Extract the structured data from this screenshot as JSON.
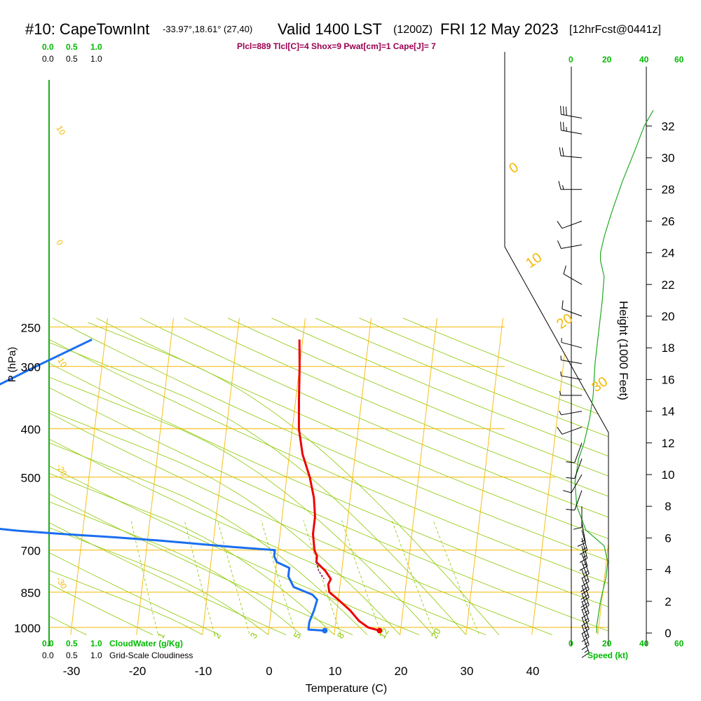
{
  "header": {
    "station": "#10: CapeTownInt",
    "coords": "-33.97°,18.61° (27,40)",
    "valid": "Valid 1400 LST",
    "zulu": "(1200Z)",
    "date": "FRI 12 May 2023",
    "forecast": "[12hrFcst@0441z]",
    "params": "Plcl=889 Tlcl[C]=4 Shox=9 Pwat[cm]=1 Cape[J]= 7"
  },
  "scales": {
    "cloudwater_top": [
      "0.0",
      "0.5",
      "1.0"
    ],
    "cloudiness_top": [
      "0.0",
      "0.5",
      "1.0"
    ],
    "cloudwater_bottom": [
      "0.0",
      "0.5",
      "1.0"
    ],
    "cloudwater_label": "CloudWater (g/Kg)",
    "cloudiness_bottom": [
      "0.0",
      "0.5",
      "1.0"
    ],
    "cloudiness_label": "Grid-Scale Cloudiness",
    "speed_top": [
      "0",
      "20",
      "40",
      "60"
    ],
    "speed_bottom": [
      "0",
      "20",
      "40",
      "60"
    ],
    "speed_label": "Speed (kt)"
  },
  "colors": {
    "isobar": "#f5b800",
    "isotherm": "#f5b800",
    "dry_adiabat": "#8cc800",
    "moist_adiabat": "#8cc800",
    "mixing_ratio": "#8cc800",
    "temperature": "#ee0000",
    "dewpoint": "#1a6ef0",
    "cloudwater": "#00aa00",
    "speed": "#22aa22",
    "params": "#9a0050"
  },
  "chart_data": {
    "type": "line",
    "title": "#10: CapeTownInt  Valid 1400 LST (1200Z) FRI 12 May 2023 [12hrFcst@0441z]",
    "xlabel": "Temperature (C)",
    "ylabel": "P (hPa)",
    "y2label": "Height (1000 Feet)",
    "x_ticks": [
      -30,
      -20,
      -10,
      0,
      10,
      20,
      30,
      40
    ],
    "p_ticks": [
      250,
      300,
      400,
      500,
      700,
      850,
      1000
    ],
    "height_ticks": [
      0,
      2,
      4,
      6,
      8,
      10,
      12,
      14,
      16,
      18,
      20,
      22,
      24,
      26,
      28,
      30,
      32
    ],
    "isotherm_labels": [
      {
        "t": 10,
        "text": "10"
      },
      {
        "t": 0,
        "text": "0"
      },
      {
        "t": -10,
        "text": "-10"
      },
      {
        "t": -20,
        "text": "-20"
      },
      {
        "t": -30,
        "text": "-30"
      }
    ],
    "theta_labels": [
      "0",
      "10",
      "20",
      "30"
    ],
    "mixing_ratio_labels": [
      "1",
      "2",
      "3",
      "5",
      "8",
      "12",
      "20"
    ],
    "series": [
      {
        "name": "temperature",
        "points": [
          [
            16.8,
            1015
          ],
          [
            15,
            1000
          ],
          [
            13.5,
            970
          ],
          [
            12,
            925
          ],
          [
            10,
            880
          ],
          [
            8.5,
            850
          ],
          [
            8.2,
            820
          ],
          [
            8.5,
            800
          ],
          [
            7.5,
            770
          ],
          [
            6,
            740
          ],
          [
            6,
            720
          ],
          [
            5.5,
            700
          ],
          [
            5,
            650
          ],
          [
            5,
            600
          ],
          [
            4.5,
            550
          ],
          [
            3.5,
            500
          ],
          [
            2,
            450
          ],
          [
            1,
            400
          ],
          [
            0.5,
            350
          ],
          [
            0,
            300
          ],
          [
            -0.5,
            265
          ]
        ]
      },
      {
        "name": "dewpoint",
        "points": [
          [
            8.5,
            1015
          ],
          [
            6,
            1010
          ],
          [
            6,
            975
          ],
          [
            6.5,
            925
          ],
          [
            6.8,
            880
          ],
          [
            6,
            860
          ],
          [
            3,
            830
          ],
          [
            2,
            790
          ],
          [
            2,
            760
          ],
          [
            0,
            740
          ],
          [
            -0.5,
            720
          ],
          [
            -0.5,
            700
          ],
          [
            -7,
            690
          ],
          [
            -18,
            670
          ],
          [
            -25,
            660
          ],
          [
            -33,
            650
          ],
          [
            -40,
            640
          ],
          [
            -50,
            620
          ],
          [
            -60,
            600
          ],
          [
            -58,
            400
          ],
          [
            -40,
            300
          ],
          [
            -32,
            265
          ]
        ]
      }
    ],
    "parcel": [
      [
        6,
        740
      ],
      [
        6.5,
        770
      ],
      [
        7.5,
        800
      ]
    ],
    "winds": [
      {
        "h": 0,
        "dir": 160,
        "spd": 15
      },
      {
        "h": 0.5,
        "dir": 160,
        "spd": 15
      },
      {
        "h": 1,
        "dir": 160,
        "spd": 16
      },
      {
        "h": 1.5,
        "dir": 160,
        "spd": 16
      },
      {
        "h": 2,
        "dir": 160,
        "spd": 17
      },
      {
        "h": 2.5,
        "dir": 160,
        "spd": 17
      },
      {
        "h": 3,
        "dir": 160,
        "spd": 18
      },
      {
        "h": 3.5,
        "dir": 160,
        "spd": 18
      },
      {
        "h": 4,
        "dir": 160,
        "spd": 18
      },
      {
        "h": 4.5,
        "dir": 160,
        "spd": 17
      },
      {
        "h": 5,
        "dir": 160,
        "spd": 17
      },
      {
        "h": 5.5,
        "dir": 165,
        "spd": 16
      },
      {
        "h": 6,
        "dir": 165,
        "spd": 15
      },
      {
        "h": 6.5,
        "dir": 165,
        "spd": 15
      },
      {
        "h": 7,
        "dir": 170,
        "spd": 14
      },
      {
        "h": 8,
        "dir": 180,
        "spd": 12
      },
      {
        "h": 9,
        "dir": 200,
        "spd": 10
      },
      {
        "h": 10,
        "dir": 210,
        "spd": 10
      },
      {
        "h": 11,
        "dir": 200,
        "spd": 10
      },
      {
        "h": 12,
        "dir": 200,
        "spd": 9
      },
      {
        "h": 13,
        "dir": 250,
        "spd": 8
      },
      {
        "h": 14,
        "dir": 260,
        "spd": 7
      },
      {
        "h": 15,
        "dir": 270,
        "spd": 7
      },
      {
        "h": 16,
        "dir": 280,
        "spd": 7
      },
      {
        "h": 17,
        "dir": 280,
        "spd": 6
      },
      {
        "h": 18,
        "dir": 285,
        "spd": 7
      },
      {
        "h": 20,
        "dir": 290,
        "spd": 8
      },
      {
        "h": 22,
        "dir": 300,
        "spd": 8
      },
      {
        "h": 24.5,
        "dir": 260,
        "spd": 10
      },
      {
        "h": 26,
        "dir": 250,
        "spd": 12
      },
      {
        "h": 28,
        "dir": 270,
        "spd": 15
      },
      {
        "h": 30,
        "dir": 275,
        "spd": 20
      },
      {
        "h": 31.5,
        "dir": 280,
        "spd": 25
      },
      {
        "h": 32.5,
        "dir": 280,
        "spd": 28
      }
    ],
    "speed_profile": [
      [
        14,
        0
      ],
      [
        14,
        0.5
      ],
      [
        16,
        2
      ],
      [
        19,
        3.5
      ],
      [
        20,
        4.5
      ],
      [
        18,
        5.5
      ],
      [
        8,
        6.5
      ],
      [
        3,
        8
      ],
      [
        2,
        9.5
      ],
      [
        4,
        11
      ],
      [
        7,
        12
      ],
      [
        10,
        13.5
      ],
      [
        12,
        15
      ],
      [
        13,
        17
      ],
      [
        15,
        19
      ],
      [
        17,
        21
      ],
      [
        18,
        22.5
      ],
      [
        16,
        23.5
      ],
      [
        16,
        24
      ],
      [
        18,
        25
      ],
      [
        22,
        26.5
      ],
      [
        28,
        28.5
      ],
      [
        35,
        30.5
      ],
      [
        40,
        32
      ],
      [
        45,
        33
      ]
    ]
  }
}
